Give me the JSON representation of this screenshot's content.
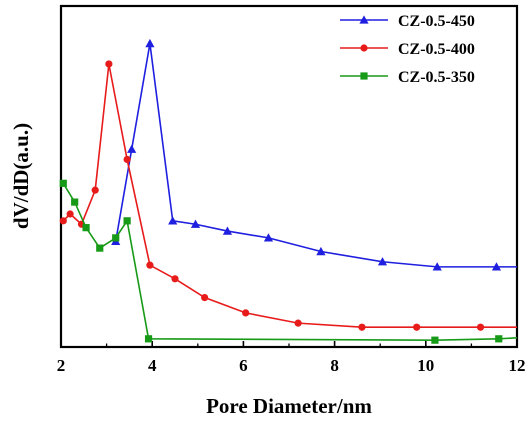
{
  "chart_data": {
    "type": "line",
    "xlabel": "Pore Diameter/nm",
    "ylabel": "dV/dD(a.u.)",
    "xlim": [
      2,
      12
    ],
    "ylim": [
      0,
      1
    ],
    "x_ticks": [
      "2",
      "4",
      "6",
      "8",
      "10",
      "12"
    ],
    "y_ticks_shown": false,
    "legend_position": "top-right",
    "series": [
      {
        "name": "CZ-0.5-450",
        "color": "#1f1fe0",
        "marker": "triangle",
        "x": [
          3.2,
          3.55,
          3.95,
          4.45,
          4.95,
          5.65,
          6.55,
          7.7,
          9.05,
          10.25,
          11.55,
          12.0
        ],
        "y": [
          0.31,
          0.58,
          0.89,
          0.37,
          0.36,
          0.34,
          0.32,
          0.28,
          0.25,
          0.235,
          0.235,
          0.235
        ]
      },
      {
        "name": "CZ-0.5-400",
        "color": "#e81b1b",
        "marker": "circle",
        "x": [
          2.05,
          2.2,
          2.45,
          2.75,
          3.05,
          3.45,
          3.95,
          4.5,
          5.15,
          6.05,
          7.2,
          8.6,
          9.8,
          11.2,
          12.0
        ],
        "y": [
          0.37,
          0.39,
          0.36,
          0.46,
          0.83,
          0.55,
          0.24,
          0.2,
          0.145,
          0.1,
          0.07,
          0.058,
          0.058,
          0.058,
          0.058
        ]
      },
      {
        "name": "CZ-0.5-350",
        "color": "#179a17",
        "marker": "square",
        "x": [
          2.05,
          2.3,
          2.55,
          2.85,
          3.2,
          3.45,
          3.92,
          10.2,
          11.6,
          12.0
        ],
        "y": [
          0.48,
          0.425,
          0.35,
          0.29,
          0.32,
          0.37,
          0.024,
          0.02,
          0.024,
          0.027
        ]
      }
    ]
  }
}
